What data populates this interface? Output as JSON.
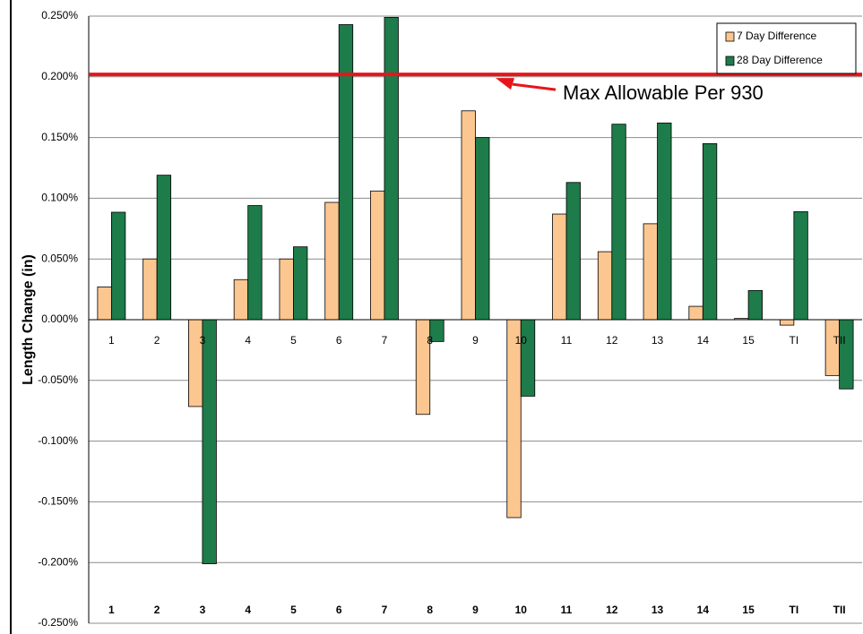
{
  "chart_data": {
    "type": "bar",
    "y_label": "Length Change (in)",
    "categories": [
      "1",
      "2",
      "3",
      "4",
      "5",
      "6",
      "7",
      "8",
      "9",
      "10",
      "11",
      "12",
      "13",
      "14",
      "15",
      "TI",
      "TII"
    ],
    "series": [
      {
        "name": "7 Day Difference",
        "color": "#fcc690",
        "values": [
          0.027,
          0.05,
          -0.0715,
          0.033,
          0.05,
          0.0966,
          0.106,
          -0.078,
          0.172,
          -0.163,
          0.087,
          0.056,
          0.079,
          0.011,
          0.001,
          -0.0045,
          -0.046
        ]
      },
      {
        "name": "28 Day Difference",
        "color": "#1e7b4a",
        "values": [
          0.0885,
          0.119,
          -0.201,
          0.094,
          0.06,
          0.243,
          0.249,
          -0.018,
          0.15,
          -0.063,
          0.113,
          0.161,
          0.162,
          0.145,
          0.024,
          0.089,
          -0.057
        ]
      }
    ],
    "threshold": {
      "value": 0.202,
      "label": "Max Allowable Per 930",
      "color": "#e8141b"
    },
    "ylim": [
      -0.25,
      0.25
    ],
    "yticks": [
      {
        "value": -0.25,
        "label": "-0.250%"
      },
      {
        "value": -0.2,
        "label": "-0.200%"
      },
      {
        "value": -0.15,
        "label": "-0.150%"
      },
      {
        "value": -0.1,
        "label": "-0.100%"
      },
      {
        "value": -0.05,
        "label": "-0.050%"
      },
      {
        "value": 0,
        "label": "0.000%"
      },
      {
        "value": 0.05,
        "label": "0.050%"
      },
      {
        "value": 0.1,
        "label": "0.100%"
      },
      {
        "value": 0.15,
        "label": "0.150%"
      },
      {
        "value": 0.2,
        "label": "0.200%"
      },
      {
        "value": 0.25,
        "label": "0.250%"
      }
    ],
    "grid": true,
    "legend": "top-right"
  }
}
